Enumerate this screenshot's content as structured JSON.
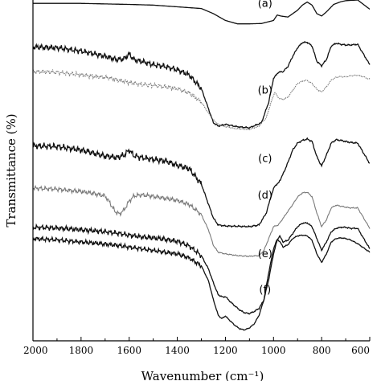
{
  "chart_data": {
    "type": "line",
    "xlabel": "Wavenumber (cm⁻¹)",
    "ylabel": "Transmittance (%)",
    "xlim": [
      2000,
      600
    ],
    "x_reversed": true,
    "xticks": [
      2000,
      1800,
      1600,
      1400,
      1200,
      1000,
      800,
      600
    ],
    "y_units": "arbitrary",
    "ylim": [
      0,
      100
    ],
    "yticks_labeled": false,
    "grid": false,
    "legend": "none",
    "series": [
      {
        "name": "(a)",
        "color": "#111111",
        "noise": 0,
        "label_at": [
          1035,
          98
        ],
        "points": [
          [
            2000,
            99
          ],
          [
            1800,
            99
          ],
          [
            1600,
            98.7
          ],
          [
            1500,
            98.5
          ],
          [
            1400,
            98
          ],
          [
            1300,
            97.5
          ],
          [
            1250,
            96
          ],
          [
            1200,
            94
          ],
          [
            1150,
            93
          ],
          [
            1100,
            93
          ],
          [
            1050,
            93.1
          ],
          [
            1000,
            94
          ],
          [
            985,
            95.6
          ],
          [
            970,
            95.3
          ],
          [
            940,
            95
          ],
          [
            900,
            97
          ],
          [
            880,
            98.5
          ],
          [
            860,
            99.4
          ],
          [
            840,
            98.5
          ],
          [
            820,
            96
          ],
          [
            800,
            95.3
          ],
          [
            780,
            96.5
          ],
          [
            750,
            98.7
          ],
          [
            720,
            99.5
          ],
          [
            700,
            99.8
          ],
          [
            650,
            100
          ],
          [
            600,
            97.3
          ]
        ]
      },
      {
        "name": "(b)",
        "color": "#111111",
        "noise": 1.0,
        "label_at": [
          1035,
          72.5
        ],
        "points": [
          [
            2000,
            86.2
          ],
          [
            1900,
            86
          ],
          [
            1800,
            85
          ],
          [
            1700,
            83.5
          ],
          [
            1650,
            82.5
          ],
          [
            1620,
            82.8
          ],
          [
            1600,
            84.2
          ],
          [
            1580,
            82.5
          ],
          [
            1550,
            82
          ],
          [
            1500,
            81
          ],
          [
            1450,
            80.5
          ],
          [
            1400,
            79.5
          ],
          [
            1350,
            78
          ],
          [
            1300,
            74
          ],
          [
            1270,
            68
          ],
          [
            1250,
            64
          ],
          [
            1230,
            63
          ],
          [
            1200,
            63.5
          ],
          [
            1150,
            62.8
          ],
          [
            1100,
            62.5
          ],
          [
            1050,
            64
          ],
          [
            1020,
            70
          ],
          [
            1000,
            77
          ],
          [
            980,
            78.8
          ],
          [
            960,
            79
          ],
          [
            940,
            80.5
          ],
          [
            920,
            83.5
          ],
          [
            900,
            86
          ],
          [
            880,
            87.5
          ],
          [
            860,
            87.6
          ],
          [
            840,
            86.5
          ],
          [
            820,
            82
          ],
          [
            800,
            80.7
          ],
          [
            780,
            82.5
          ],
          [
            760,
            86.5
          ],
          [
            740,
            87.3
          ],
          [
            720,
            87
          ],
          [
            700,
            86.8
          ],
          [
            680,
            86.8
          ],
          [
            650,
            87
          ],
          [
            600,
            81
          ]
        ]
      },
      {
        "name": "(b) dotted",
        "color": "#7a7a7a",
        "noise": 0.8,
        "points": [
          [
            2000,
            79
          ],
          [
            1900,
            78.8
          ],
          [
            1800,
            78
          ],
          [
            1700,
            77.3
          ],
          [
            1650,
            76.6
          ],
          [
            1600,
            75.8
          ],
          [
            1550,
            75.2
          ],
          [
            1500,
            75
          ],
          [
            1450,
            74.5
          ],
          [
            1400,
            74
          ],
          [
            1350,
            72.7
          ],
          [
            1300,
            70
          ],
          [
            1270,
            66.8
          ],
          [
            1250,
            64.8
          ],
          [
            1230,
            63.5
          ],
          [
            1200,
            62.8
          ],
          [
            1150,
            62.2
          ],
          [
            1100,
            62
          ],
          [
            1060,
            63
          ],
          [
            1030,
            65.5
          ],
          [
            1010,
            70
          ],
          [
            995,
            73
          ],
          [
            980,
            71.3
          ],
          [
            960,
            70.8
          ],
          [
            940,
            71.5
          ],
          [
            920,
            73.5
          ],
          [
            900,
            75.5
          ],
          [
            880,
            76.2
          ],
          [
            860,
            76.4
          ],
          [
            840,
            75.5
          ],
          [
            820,
            73.8
          ],
          [
            800,
            73
          ],
          [
            780,
            74.5
          ],
          [
            760,
            76.5
          ],
          [
            740,
            77.3
          ],
          [
            720,
            77.5
          ],
          [
            700,
            77.5
          ],
          [
            650,
            78
          ],
          [
            600,
            76.8
          ]
        ]
      },
      {
        "name": "(c)",
        "color": "#111111",
        "noise": 1.1,
        "label_at": [
          1035,
          52.5
        ],
        "points": [
          [
            2000,
            57.2
          ],
          [
            1900,
            57
          ],
          [
            1800,
            56
          ],
          [
            1700,
            54.2
          ],
          [
            1650,
            53.8
          ],
          [
            1620,
            54.5
          ],
          [
            1600,
            56
          ],
          [
            1580,
            54.3
          ],
          [
            1550,
            53.8
          ],
          [
            1500,
            53.2
          ],
          [
            1450,
            52.8
          ],
          [
            1400,
            51.5
          ],
          [
            1350,
            50.5
          ],
          [
            1300,
            46
          ],
          [
            1270,
            40
          ],
          [
            1250,
            36
          ],
          [
            1230,
            34
          ],
          [
            1200,
            33.7
          ],
          [
            1150,
            33.6
          ],
          [
            1100,
            33.5
          ],
          [
            1060,
            34
          ],
          [
            1030,
            37.5
          ],
          [
            1010,
            42.5
          ],
          [
            995,
            45.5
          ],
          [
            980,
            46.2
          ],
          [
            960,
            49
          ],
          [
            940,
            52.3
          ],
          [
            920,
            56
          ],
          [
            900,
            58
          ],
          [
            880,
            58.8
          ],
          [
            860,
            59.2
          ],
          [
            840,
            58.5
          ],
          [
            820,
            54
          ],
          [
            800,
            51.3
          ],
          [
            780,
            54.5
          ],
          [
            760,
            58
          ],
          [
            740,
            59
          ],
          [
            720,
            58.8
          ],
          [
            700,
            58.5
          ],
          [
            680,
            58.2
          ],
          [
            650,
            58
          ],
          [
            600,
            52
          ]
        ]
      },
      {
        "name": "(d)",
        "color": "#7a7a7a",
        "noise": 0.8,
        "label_at": [
          1035,
          41.8
        ],
        "points": [
          [
            2000,
            44.8
          ],
          [
            1900,
            44.5
          ],
          [
            1800,
            43.8
          ],
          [
            1750,
            43.3
          ],
          [
            1700,
            42.5
          ],
          [
            1680,
            40.5
          ],
          [
            1660,
            38
          ],
          [
            1640,
            37.2
          ],
          [
            1620,
            38.5
          ],
          [
            1600,
            41
          ],
          [
            1580,
            42.5
          ],
          [
            1550,
            42.8
          ],
          [
            1500,
            42.4
          ],
          [
            1450,
            41.8
          ],
          [
            1400,
            41.2
          ],
          [
            1350,
            40
          ],
          [
            1300,
            37
          ],
          [
            1270,
            32.5
          ],
          [
            1250,
            28
          ],
          [
            1230,
            26
          ],
          [
            1200,
            25.5
          ],
          [
            1150,
            25
          ],
          [
            1100,
            24.8
          ],
          [
            1060,
            25
          ],
          [
            1040,
            26.5
          ],
          [
            1020,
            30
          ],
          [
            1000,
            33.5
          ],
          [
            980,
            34
          ],
          [
            960,
            36
          ],
          [
            940,
            38
          ],
          [
            920,
            40
          ],
          [
            900,
            42.2
          ],
          [
            880,
            43.4
          ],
          [
            860,
            43.6
          ],
          [
            840,
            42.3
          ],
          [
            820,
            37.5
          ],
          [
            800,
            33.5
          ],
          [
            780,
            35.5
          ],
          [
            760,
            39
          ],
          [
            740,
            39.8
          ],
          [
            720,
            39.5
          ],
          [
            700,
            39.2
          ],
          [
            680,
            39
          ],
          [
            650,
            39
          ],
          [
            600,
            33
          ]
        ]
      },
      {
        "name": "(e)",
        "color": "#111111",
        "noise": 0.9,
        "label_at": [
          1035,
          24.5
        ],
        "points": [
          [
            2000,
            33.3
          ],
          [
            1900,
            33.1
          ],
          [
            1800,
            32.6
          ],
          [
            1700,
            32
          ],
          [
            1650,
            31.6
          ],
          [
            1600,
            31
          ],
          [
            1550,
            30.5
          ],
          [
            1500,
            30.2
          ],
          [
            1450,
            29.8
          ],
          [
            1400,
            29.2
          ],
          [
            1350,
            27.8
          ],
          [
            1300,
            25
          ],
          [
            1270,
            21
          ],
          [
            1250,
            17
          ],
          [
            1230,
            13.5
          ],
          [
            1210,
            12.8
          ],
          [
            1200,
            13
          ],
          [
            1180,
            11.5
          ],
          [
            1160,
            10.2
          ],
          [
            1140,
            9
          ],
          [
            1120,
            8.2
          ],
          [
            1100,
            8
          ],
          [
            1080,
            8.6
          ],
          [
            1060,
            9.5
          ],
          [
            1040,
            12
          ],
          [
            1020,
            18
          ],
          [
            1000,
            25.5
          ],
          [
            985,
            29.5
          ],
          [
            975,
            30.8
          ],
          [
            960,
            29
          ],
          [
            940,
            29.5
          ],
          [
            920,
            31.5
          ],
          [
            900,
            33.5
          ],
          [
            880,
            34.5
          ],
          [
            860,
            34.6
          ],
          [
            840,
            33.5
          ],
          [
            820,
            30
          ],
          [
            800,
            26.6
          ],
          [
            780,
            29
          ],
          [
            760,
            32
          ],
          [
            740,
            33
          ],
          [
            720,
            33.3
          ],
          [
            700,
            33.3
          ],
          [
            680,
            33
          ],
          [
            650,
            33
          ],
          [
            600,
            27
          ]
        ]
      },
      {
        "name": "(f)",
        "color": "#111111",
        "noise": 0,
        "label_at": [
          1035,
          14
        ],
        "points": []
      }
    ]
  }
}
